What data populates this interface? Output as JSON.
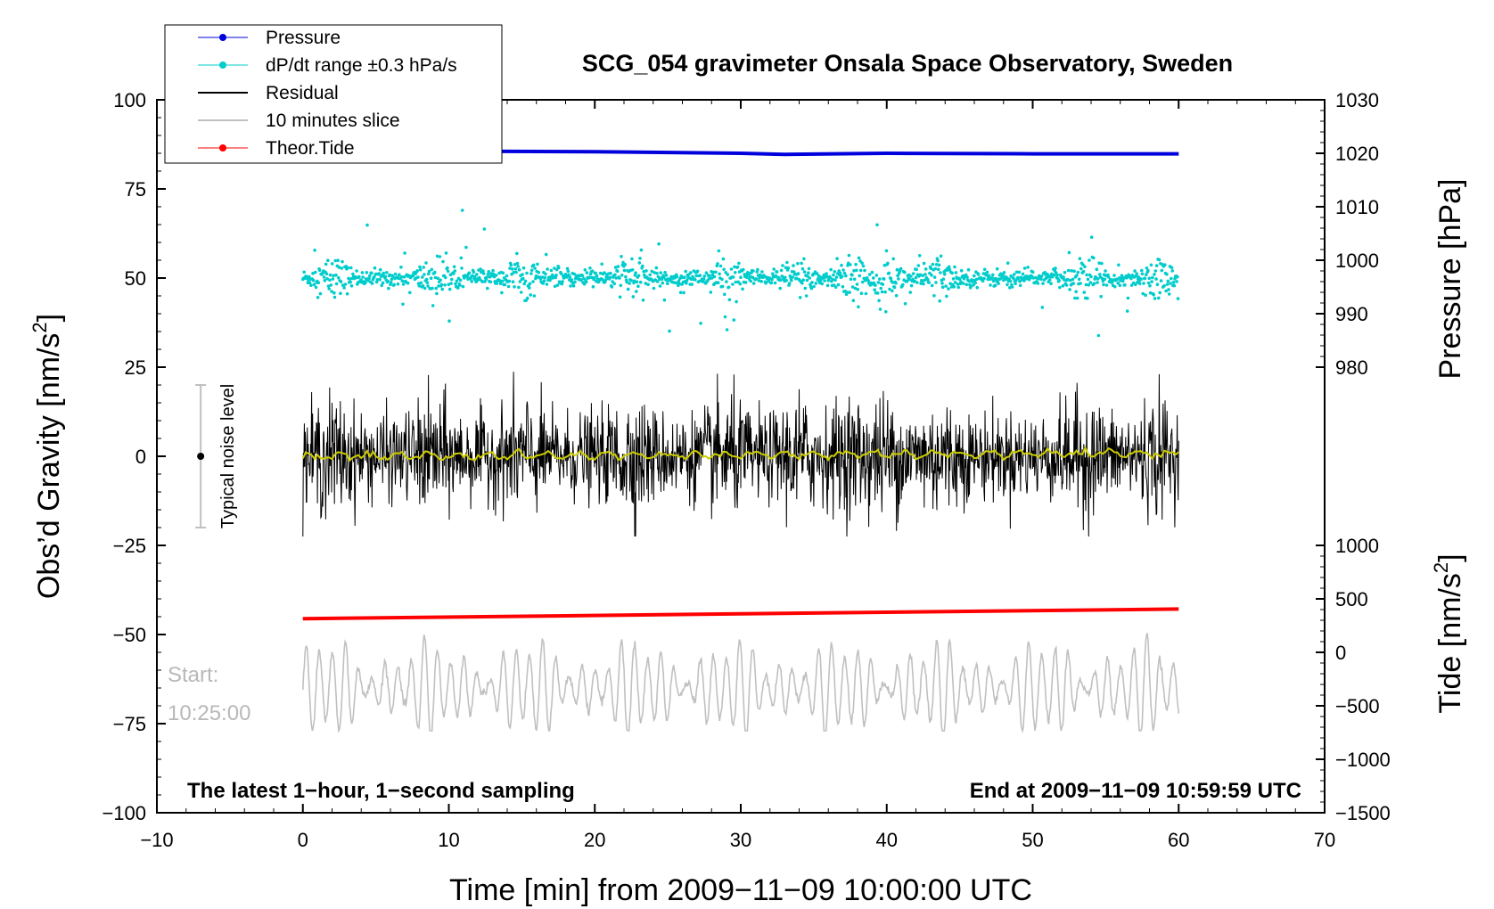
{
  "chart_data": {
    "type": "line",
    "title": "SCG_054 gravimeter Onsala Space Observatory, Sweden",
    "xlabel": "Time [min] from 2009−11−09 10:00:00 UTC",
    "ylabel": "Obs’d Gravity [nm/s²]",
    "ylabel_main": "Obs’d Gravity [nm/s",
    "ylabel_sup": "2",
    "ylabel_close": "]",
    "xlim": [
      -10,
      70
    ],
    "ylim": [
      -100,
      100
    ],
    "x_ticks": [
      -10,
      0,
      10,
      20,
      30,
      40,
      50,
      60,
      70
    ],
    "x_tick_labels": [
      "−10",
      "0",
      "10",
      "20",
      "30",
      "40",
      "50",
      "60",
      "70"
    ],
    "y_ticks": [
      100,
      75,
      50,
      25,
      0,
      -25,
      -50,
      -75,
      -100
    ],
    "y_tick_labels": [
      "100",
      "75",
      "50",
      "25",
      "0",
      "−25",
      "−50",
      "−75",
      "−100"
    ],
    "pressure_axis": {
      "label": "Pressure [hPa]",
      "ticks": [
        1030,
        1020,
        1010,
        1000,
        990,
        980
      ],
      "tick_labels": [
        "1030",
        "1020",
        "1010",
        "1000",
        "990",
        "980"
      ],
      "range": [
        970,
        1030
      ]
    },
    "tide_axis": {
      "label": "Tide [nm/s²]",
      "label_main": "Tide [nm/s",
      "label_sup": "2",
      "label_close": "]",
      "ticks": [
        1000,
        500,
        0,
        -500,
        -1000,
        -1500
      ],
      "tick_labels": [
        "1000",
        "500",
        "0",
        "−500",
        "−1000",
        "−1500"
      ],
      "range": [
        -1500,
        1000
      ]
    },
    "legend": {
      "position": "top-left",
      "entries": [
        {
          "label": "Pressure",
          "color": "#0000dd",
          "marker": true
        },
        {
          "label": "dP/dt range ±0.3 hPa/s",
          "color": "#00cccc",
          "marker": true
        },
        {
          "label": "Residual",
          "color": "#000000",
          "marker": false
        },
        {
          "label": "10 minutes slice",
          "color": "#c0c0c0",
          "marker": false
        },
        {
          "label": "Theor.Tide",
          "color": "#ff0000",
          "marker": true
        }
      ]
    },
    "series": [
      {
        "name": "Pressure",
        "color": "#0000dd",
        "axis": "pressure",
        "x": [
          0,
          10,
          20,
          30,
          33,
          40,
          50,
          60
        ],
        "y": [
          1020.6,
          1020.4,
          1020.3,
          1020.0,
          1019.8,
          1020.0,
          1019.9,
          1019.9
        ]
      },
      {
        "name": "dP/dt range ±0.3 hPa/s",
        "color": "#00cccc",
        "axis": "gravity",
        "center": 50,
        "typical_spread": 4,
        "max_spread": 19
      },
      {
        "name": "Residual",
        "color": "#000000",
        "axis": "gravity",
        "center": 0,
        "typical_amplitude": 10,
        "min": -22.5,
        "max": 27
      },
      {
        "name": "Residual smoothed",
        "color": "#cccc00",
        "axis": "gravity",
        "center": 0,
        "end_value": 0.8
      },
      {
        "name": "Theor.Tide",
        "color": "#ff0000",
        "axis": "tide",
        "x": [
          0,
          60
        ],
        "y": [
          315,
          405
        ]
      },
      {
        "name": "10 minutes slice",
        "color": "#c0c0c0",
        "axis": "gravity",
        "center": -65,
        "min": -77,
        "max": -47
      }
    ],
    "noise_bar": {
      "x": -7,
      "center": 0,
      "half_range": 20,
      "label": "Typical noise level"
    },
    "annotations": {
      "start_label": "Start:",
      "start_time": "10:25:00",
      "bottom_left": "The latest 1−hour, 1−second sampling",
      "bottom_right": "End at 2009−11−09 10:59:59 UTC"
    }
  }
}
